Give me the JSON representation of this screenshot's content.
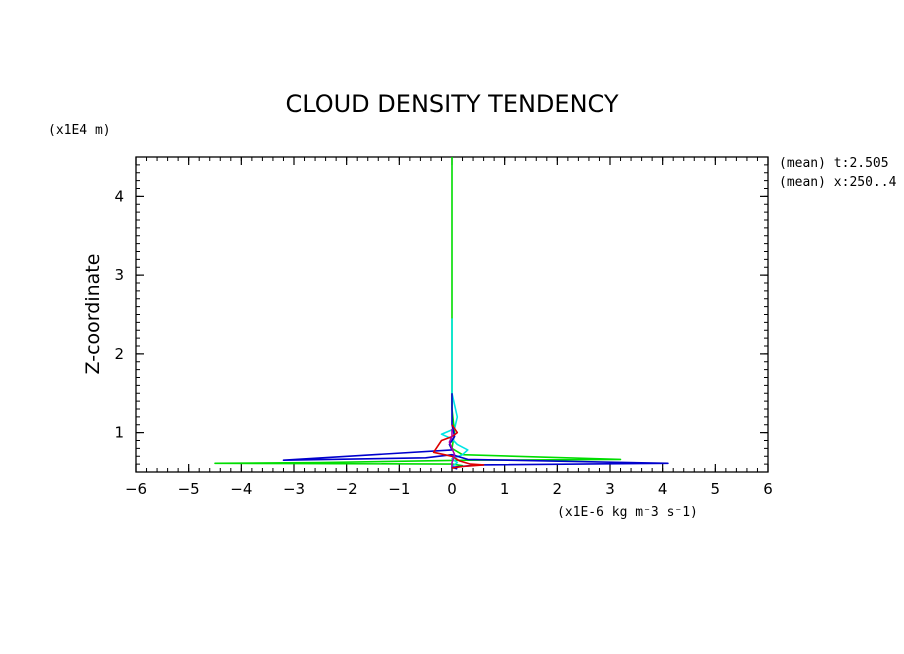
{
  "chart_data": {
    "type": "line",
    "title": "CLOUD DENSITY TENDENCY",
    "ylabel": "Z-coordinate",
    "xunits": "(x1E-6 kg m⁻3 s⁻1)",
    "yunits": "(x1E4 m)",
    "annotations": [
      "(mean) t:2.505",
      "(mean) x:250..4"
    ],
    "xlim": [
      -6,
      6
    ],
    "ylim": [
      0.5,
      4.5
    ],
    "xticks": [
      -6,
      -5,
      -4,
      -3,
      -2,
      -1,
      0,
      1,
      2,
      3,
      4,
      5,
      6
    ],
    "yticks": [
      1,
      2,
      3,
      4
    ],
    "grid": false,
    "series": [
      {
        "color": "#00dd00",
        "points": [
          [
            0,
            4.5
          ],
          [
            0,
            2.0
          ],
          [
            0,
            1.3
          ],
          [
            0.05,
            1.0
          ],
          [
            0,
            0.8
          ],
          [
            0.2,
            0.72
          ],
          [
            3.2,
            0.66
          ],
          [
            0.3,
            0.65
          ],
          [
            -2.5,
            0.62
          ],
          [
            -4.5,
            0.61
          ],
          [
            0,
            0.6
          ],
          [
            0.2,
            0.58
          ],
          [
            0,
            0.55
          ]
        ]
      },
      {
        "color": "#00e5e5",
        "points": [
          [
            0,
            2.45
          ],
          [
            0,
            1.5
          ],
          [
            0.1,
            1.2
          ],
          [
            0.05,
            1.05
          ],
          [
            -0.2,
            0.98
          ],
          [
            0,
            0.92
          ],
          [
            0.1,
            0.85
          ],
          [
            0.3,
            0.78
          ],
          [
            0.2,
            0.72
          ],
          [
            0,
            0.67
          ],
          [
            0.1,
            0.62
          ],
          [
            0,
            0.57
          ]
        ]
      },
      {
        "color": "#0000cc",
        "points": [
          [
            0,
            1.5
          ],
          [
            0,
            1.1
          ],
          [
            0.05,
            0.95
          ],
          [
            -0.05,
            0.85
          ],
          [
            0,
            0.78
          ],
          [
            -3.2,
            0.65
          ],
          [
            -0.5,
            0.68
          ],
          [
            0,
            0.72
          ],
          [
            0.3,
            0.66
          ],
          [
            4.1,
            0.61
          ],
          [
            0.5,
            0.59
          ],
          [
            0,
            0.56
          ],
          [
            0.1,
            0.54
          ]
        ]
      },
      {
        "color": "#dd0000",
        "points": [
          [
            0,
            1.1
          ],
          [
            0.1,
            1.0
          ],
          [
            0,
            0.95
          ],
          [
            -0.2,
            0.9
          ],
          [
            -0.35,
            0.75
          ],
          [
            0,
            0.7
          ],
          [
            0.15,
            0.64
          ],
          [
            0.35,
            0.6
          ],
          [
            0.6,
            0.59
          ],
          [
            0.2,
            0.57
          ],
          [
            0,
            0.55
          ]
        ]
      },
      {
        "color": "#aa00aa",
        "points": [
          [
            0,
            1.05
          ],
          [
            0,
            0.95
          ],
          [
            -0.05,
            0.88
          ],
          [
            0,
            0.8
          ],
          [
            0.05,
            0.72
          ],
          [
            0,
            0.62
          ],
          [
            0,
            0.56
          ]
        ]
      }
    ]
  }
}
